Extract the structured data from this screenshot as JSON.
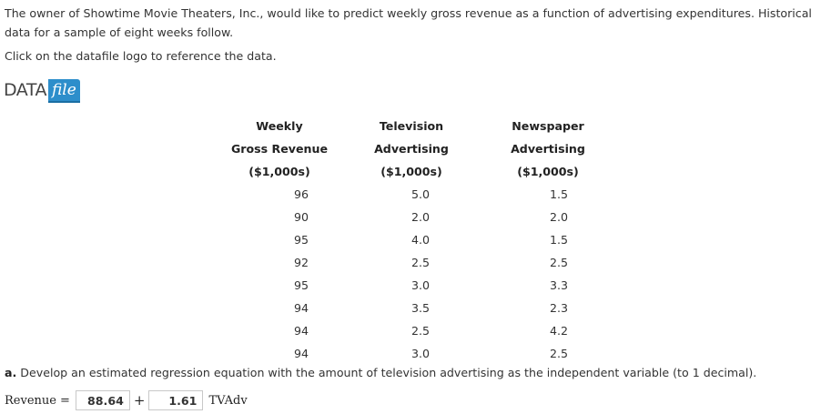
{
  "intro_text": "The owner of Showtime Movie Theaters, Inc., would like to predict weekly gross revenue as a function of advertising expenditures. Historical data for a sample of eight weeks follow.",
  "instruction": "Click on the datafile logo to reference the data.",
  "datafile_logo": {
    "data_word": "DATA",
    "file_word": "file"
  },
  "table": {
    "headers": [
      [
        "Weekly",
        "Gross Revenue",
        "($1,000s)"
      ],
      [
        "Television",
        "Advertising",
        "($1,000s)"
      ],
      [
        "Newspaper",
        "Advertising",
        "($1,000s)"
      ]
    ],
    "rows": [
      [
        "96",
        "5.0",
        "1.5"
      ],
      [
        "90",
        "2.0",
        "2.0"
      ],
      [
        "95",
        "4.0",
        "1.5"
      ],
      [
        "92",
        "2.5",
        "2.5"
      ],
      [
        "95",
        "3.0",
        "3.3"
      ],
      [
        "94",
        "3.5",
        "2.3"
      ],
      [
        "94",
        "2.5",
        "4.2"
      ],
      [
        "94",
        "3.0",
        "2.5"
      ]
    ]
  },
  "question": {
    "label": "a.",
    "text": " Develop an estimated regression equation with the amount of television advertising as the independent variable (to 1 decimal)."
  },
  "answer": {
    "lhs": "Revenue",
    "equals": "=",
    "intercept_value": "88.64",
    "plus": "+",
    "slope_value": "1.61",
    "variable": "TVAdv"
  }
}
